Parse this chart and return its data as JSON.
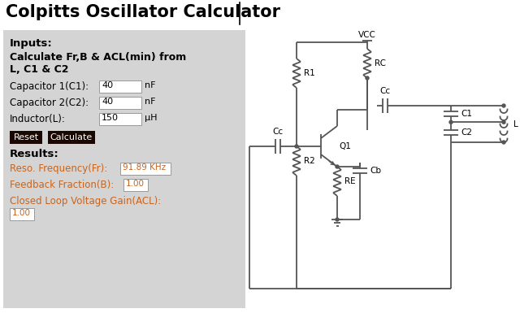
{
  "title": "Colpitts Oscillator Calculator",
  "title_fontsize": 15,
  "title_fontweight": "bold",
  "white": "#ffffff",
  "black": "#000000",
  "dark_gray": "#333333",
  "button_color": "#1a0800",
  "button_text_color": "#ffffff",
  "panel_bg": "#d4d4d4",
  "result_color": "#c8641e",
  "inputs_label": "Inputs:",
  "calc_label1": "Calculate Fr,B & ACL(min) from",
  "calc_label2": "L, C1 & C2",
  "cap1_label": "Capacitor 1(C1):",
  "cap1_val": "40",
  "cap1_unit": "nF",
  "cap2_label": "Capacitor 2(C2):",
  "cap2_val": "40",
  "cap2_unit": "nF",
  "ind_label": "Inductor(L):",
  "ind_val": "150",
  "ind_unit": "μH",
  "btn1": "Reset",
  "btn2": "Calculate",
  "results_label": "Results:",
  "freq_label": "Reso. Frequency(Fr):",
  "freq_val": "91.89 KHz",
  "feedback_label": "Feedback Fraction(B):",
  "feedback_val": "1.00",
  "gain_label": "Closed Loop Voltage Gain(ACL):",
  "gain_val": "1.00",
  "circ_color": "#555555"
}
